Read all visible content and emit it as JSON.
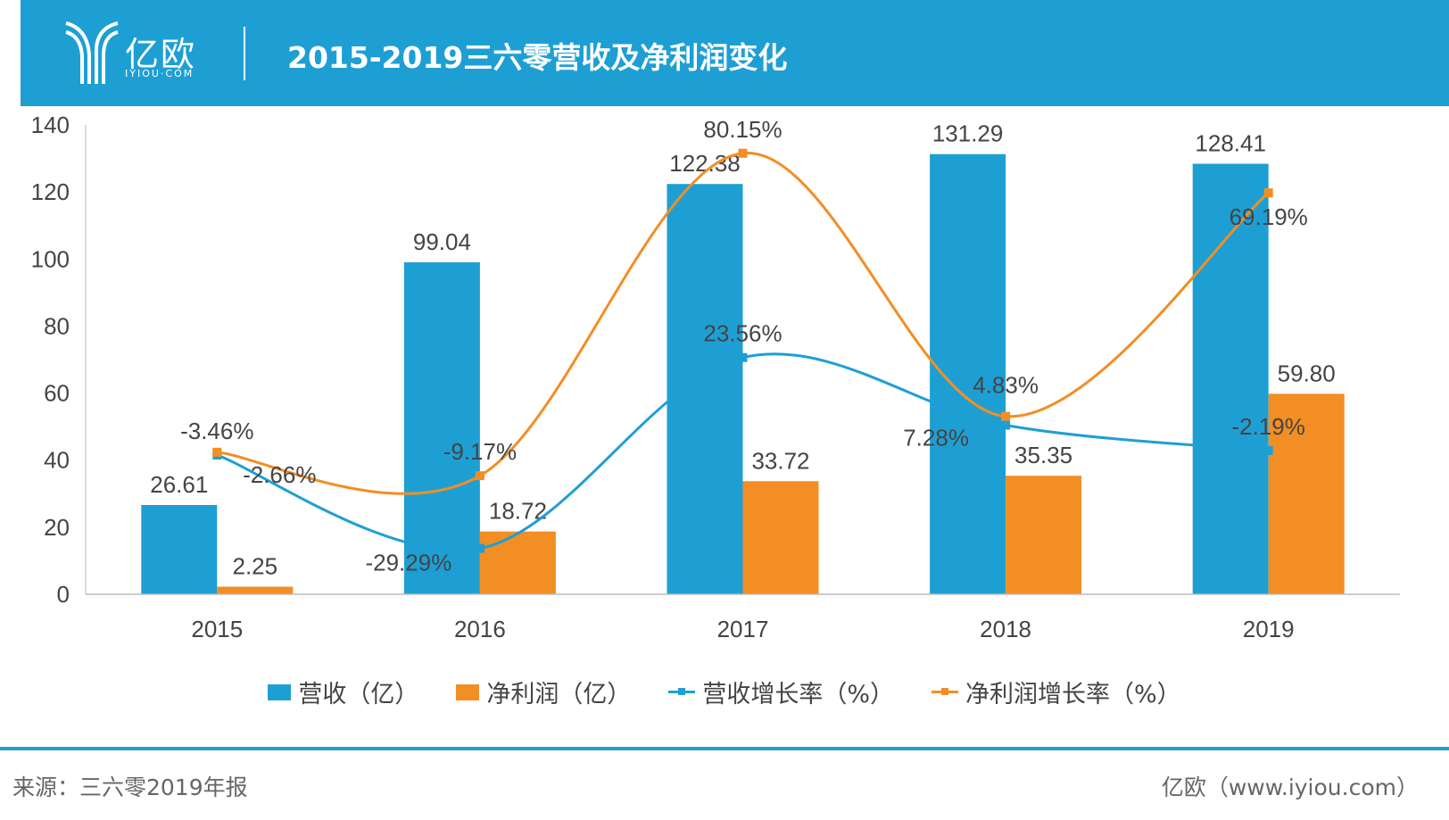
{
  "header": {
    "logo_text": "亿欧",
    "logo_sub": "IYIOU·COM",
    "title": "2015-2019三六零营收及净利润变化"
  },
  "colors": {
    "header": "#1e9fd4",
    "revenue": "#1e9fd4",
    "profit": "#f28e23"
  },
  "chart_data": {
    "type": "bar+line",
    "categories": [
      "2015",
      "2016",
      "2017",
      "2018",
      "2019"
    ],
    "ylim": [
      0,
      140
    ],
    "yticks": [
      0,
      20,
      40,
      60,
      80,
      100,
      120,
      140
    ],
    "y2lim": [
      -42,
      88
    ],
    "grid": false,
    "legend": "bottom",
    "series": [
      {
        "name": "营收（亿）",
        "kind": "bar",
        "values": [
          26.61,
          99.04,
          122.38,
          131.29,
          128.41
        ],
        "labels": [
          "26.61",
          "99.04",
          "122.38",
          "131.29",
          "128.41"
        ]
      },
      {
        "name": "净利润（亿）",
        "kind": "bar",
        "values": [
          2.25,
          18.72,
          33.72,
          35.35,
          59.8
        ],
        "labels": [
          "2.25",
          "18.72",
          "33.72",
          "35.35",
          "59.80"
        ]
      },
      {
        "name": "营收增长率（%）",
        "kind": "line",
        "axis": "secondary",
        "values": [
          -3.46,
          -29.29,
          23.56,
          4.83,
          -2.19
        ],
        "labels": [
          "-3.46%",
          "-29.29%",
          "23.56%",
          "4.83%",
          "-2.19%"
        ]
      },
      {
        "name": "净利润增长率（%）",
        "kind": "line",
        "axis": "secondary",
        "values": [
          -2.66,
          -9.17,
          80.15,
          7.28,
          69.19
        ],
        "labels": [
          "-2.66%",
          "-9.17%",
          "80.15%",
          "7.28%",
          "69.19%"
        ]
      }
    ]
  },
  "footer": {
    "source": "来源：三六零2019年报",
    "site": "亿欧（www.iyiou.com）"
  }
}
